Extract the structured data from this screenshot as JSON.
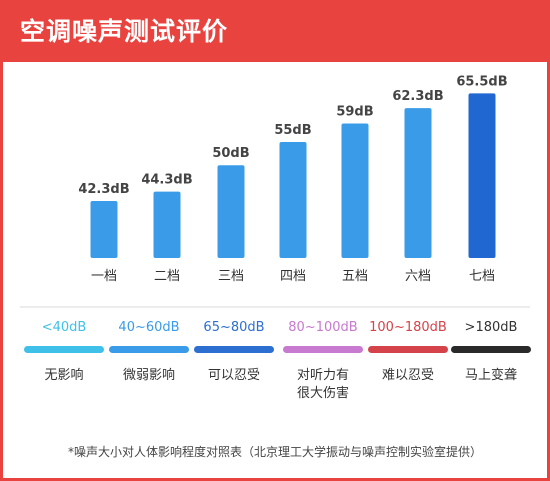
{
  "header": {
    "title": "空调噪声测试评价"
  },
  "chart_data": {
    "type": "bar",
    "title": "",
    "xlabel": "",
    "ylabel": "",
    "categories": [
      "一档",
      "二档",
      "三档",
      "四档",
      "五档",
      "六档",
      "七档"
    ],
    "values": [
      42.3,
      44.3,
      50,
      55,
      59,
      62.3,
      65.5
    ],
    "data_labels": [
      "42.3dB",
      "44.3dB",
      "50dB",
      "55dB",
      "59dB",
      "62.3dB",
      "65.5dB"
    ],
    "ylim": [
      30,
      66
    ],
    "grid": false,
    "colors": {
      "default": "#3a9be8",
      "highlight": "#2167d1"
    },
    "highlight_index": 6
  },
  "legend": {
    "items": [
      {
        "range": "<40dB",
        "desc_lines": [
          "无影响"
        ],
        "color": "#3fc0e8"
      },
      {
        "range": "40~60dB",
        "desc_lines": [
          "微弱影响"
        ],
        "color": "#3a9be8"
      },
      {
        "range": "65~80dB",
        "desc_lines": [
          "可以忍受"
        ],
        "color": "#2d6fd1"
      },
      {
        "range": "80~100dB",
        "desc_lines": [
          "对听力有",
          "很大伤害"
        ],
        "color": "#c879d0"
      },
      {
        "range": "100~180dB",
        "desc_lines": [
          "难以忍受"
        ],
        "color": "#d5434a"
      },
      {
        "range": ">180dB",
        "desc_lines": [
          "马上变聋"
        ],
        "color": "#2a2a2a"
      }
    ]
  },
  "footnote": "*噪声大小对人体影响程度对照表（北京理工大学振动与噪声控制实验室提供）"
}
